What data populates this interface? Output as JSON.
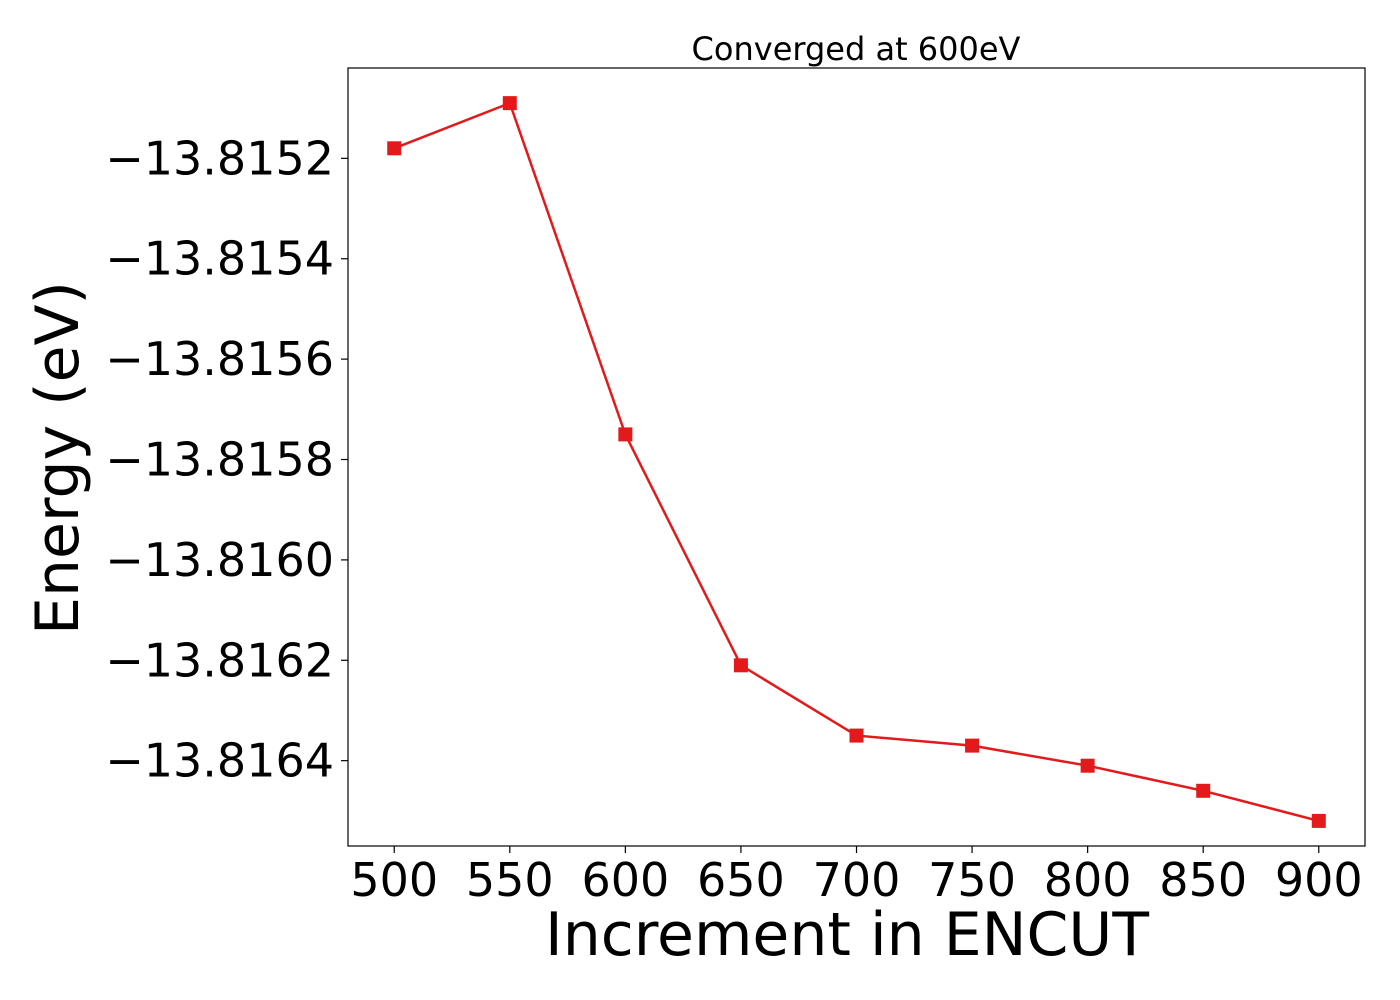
{
  "chart_data": {
    "type": "line",
    "title": "Converged at 600eV",
    "xlabel": "Increment in ENCUT",
    "ylabel": "Energy (eV)",
    "x": [
      500,
      550,
      600,
      650,
      700,
      750,
      800,
      850,
      900
    ],
    "series": [
      {
        "values": [
          -13.81518,
          -13.81509,
          -13.81575,
          -13.81621,
          -13.81635,
          -13.81637,
          -13.81641,
          -13.81646,
          -13.81652
        ],
        "color": "#e31a1c",
        "marker": "square"
      }
    ],
    "xlim": [
      480,
      920
    ],
    "ylim": [
      -13.81657,
      -13.81502
    ],
    "xticks": [
      500,
      550,
      600,
      650,
      700,
      750,
      800,
      850,
      900
    ],
    "yticks": [
      -13.8152,
      -13.8154,
      -13.8156,
      -13.8158,
      -13.816,
      -13.8162,
      -13.8164
    ],
    "ytick_labels": [
      "−13.8152",
      "−13.8154",
      "−13.8156",
      "−13.8158",
      "−13.8160",
      "−13.8162",
      "−13.8164"
    ],
    "grid": false,
    "legend": "none"
  }
}
